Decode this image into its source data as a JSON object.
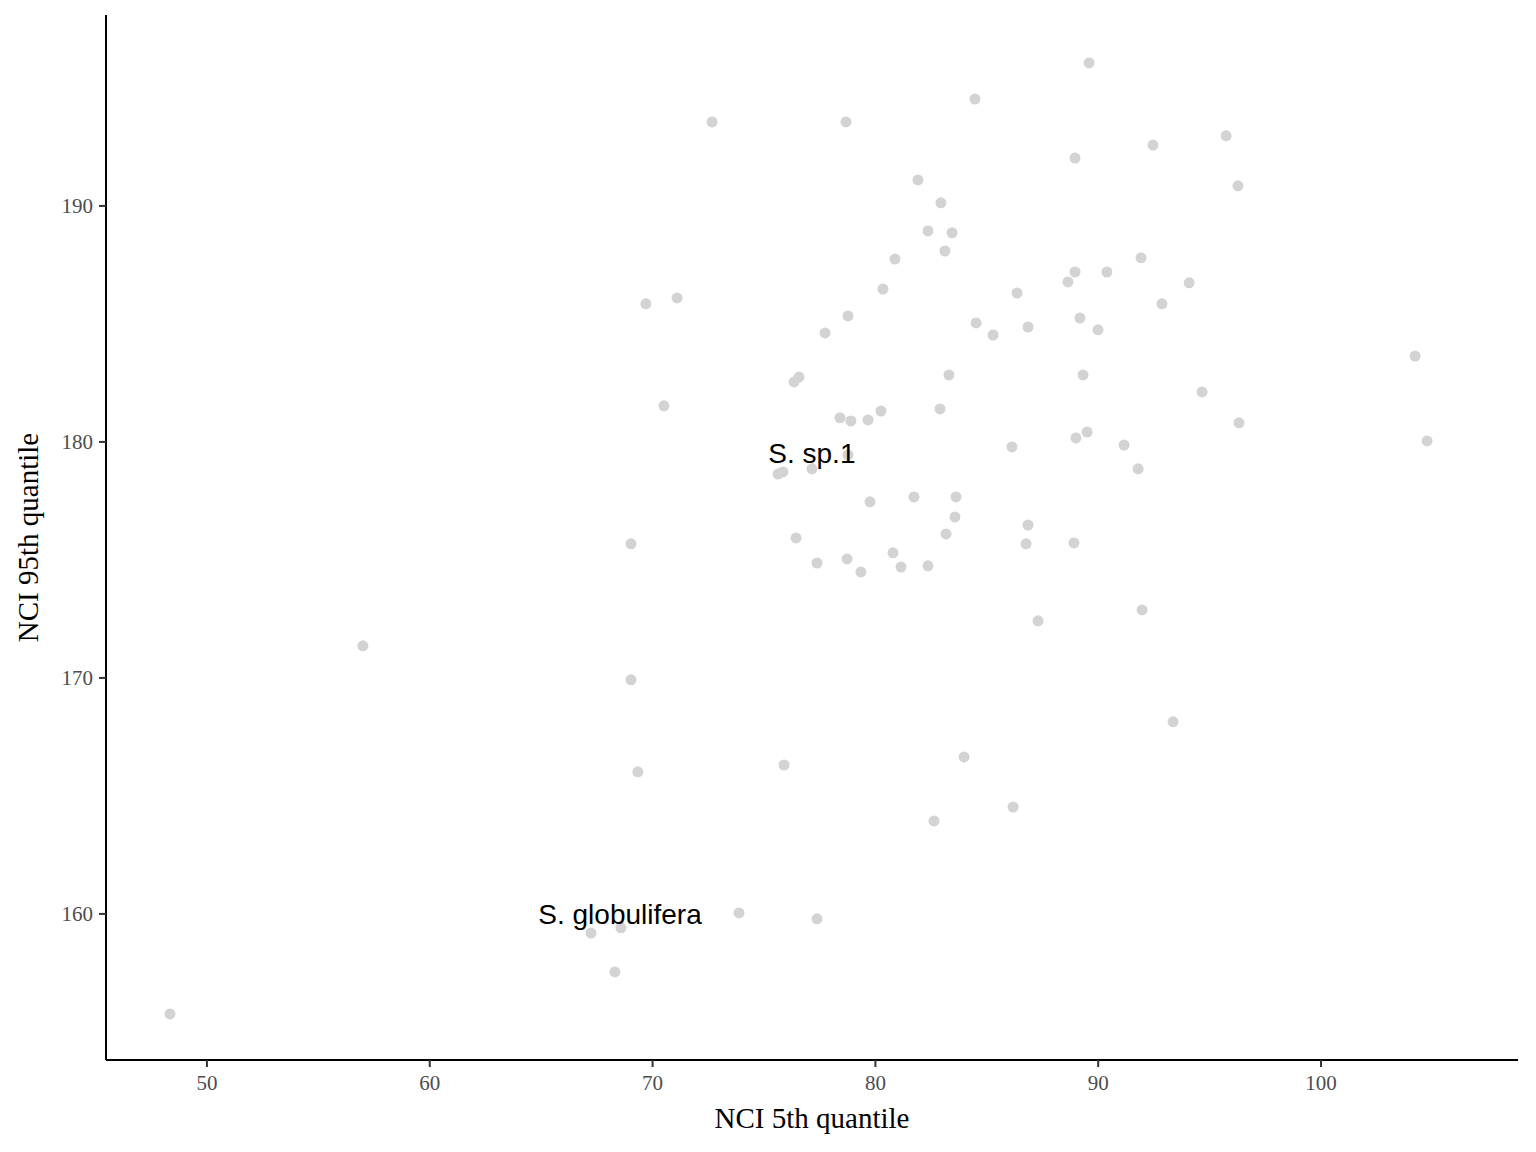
{
  "chart_data": {
    "type": "scatter",
    "x_label": "NCI 5th quantile",
    "y_label": "NCI 95th quantile",
    "color": "#d3d3d3",
    "marker": "circle",
    "grid": false,
    "xlim": [
      45.47,
      108.84
    ],
    "ylim": [
      153.81,
      198.09
    ],
    "xticks": [
      50,
      60,
      70,
      80,
      90,
      100
    ],
    "yticks": [
      160,
      170,
      180,
      190
    ],
    "x": [
      89.59,
      84.47,
      72.67,
      78.68,
      95.74,
      92.46,
      88.96,
      96.27,
      81.91,
      82.94,
      82.36,
      83.44,
      83.12,
      80.88,
      91.92,
      88.96,
      90.39,
      88.64,
      94.08,
      80.34,
      86.36,
      71.1,
      69.7,
      92.86,
      78.77,
      89.18,
      84.52,
      86.85,
      89.99,
      77.74,
      85.28,
      104.22,
      83.3,
      89.32,
      76.57,
      76.35,
      94.66,
      70.51,
      80.25,
      82.9,
      78.41,
      78.9,
      79.67,
      96.32,
      89.5,
      89.0,
      104.76,
      91.16,
      86.13,
      78.77,
      75.63,
      75.85,
      77.15,
      91.79,
      79.76,
      81.73,
      83.62,
      83.57,
      86.85,
      76.44,
      83.17,
      69.03,
      86.76,
      88.91,
      80.79,
      78.73,
      77.38,
      82.36,
      81.15,
      79.35,
      91.97,
      87.3,
      57.0,
      69.03,
      93.36,
      69.34,
      75.9,
      83.98,
      86.18,
      82.63,
      73.88,
      77.38,
      67.24,
      68.58,
      68.31,
      48.34
    ],
    "values": [
      196.06,
      194.53,
      193.56,
      193.56,
      192.97,
      192.58,
      192.03,
      190.85,
      191.1,
      190.13,
      188.94,
      188.86,
      188.09,
      187.75,
      187.8,
      187.2,
      187.2,
      186.78,
      186.74,
      186.48,
      186.31,
      186.1,
      185.85,
      185.85,
      185.34,
      185.25,
      185.04,
      184.87,
      184.75,
      184.62,
      184.53,
      183.64,
      182.84,
      182.84,
      182.75,
      182.54,
      182.12,
      181.53,
      181.31,
      181.4,
      181.02,
      180.89,
      180.93,
      180.81,
      180.42,
      180.17,
      180.04,
      179.87,
      179.79,
      179.45,
      178.64,
      178.73,
      178.86,
      178.86,
      177.46,
      177.67,
      177.67,
      176.82,
      176.48,
      175.93,
      176.1,
      175.68,
      175.68,
      175.72,
      175.3,
      175.04,
      174.87,
      174.75,
      174.7,
      174.49,
      172.88,
      172.42,
      171.36,
      169.92,
      168.14,
      166.02,
      166.31,
      166.65,
      164.53,
      163.94,
      160.04,
      159.79,
      159.19,
      159.41,
      157.54,
      155.76
    ],
    "annotations": [
      {
        "text": "S. sp.1",
        "x": 77.15,
        "y": 179.53
      },
      {
        "text": "S. globulifera",
        "x": 68.54,
        "y": 160.0
      }
    ]
  }
}
